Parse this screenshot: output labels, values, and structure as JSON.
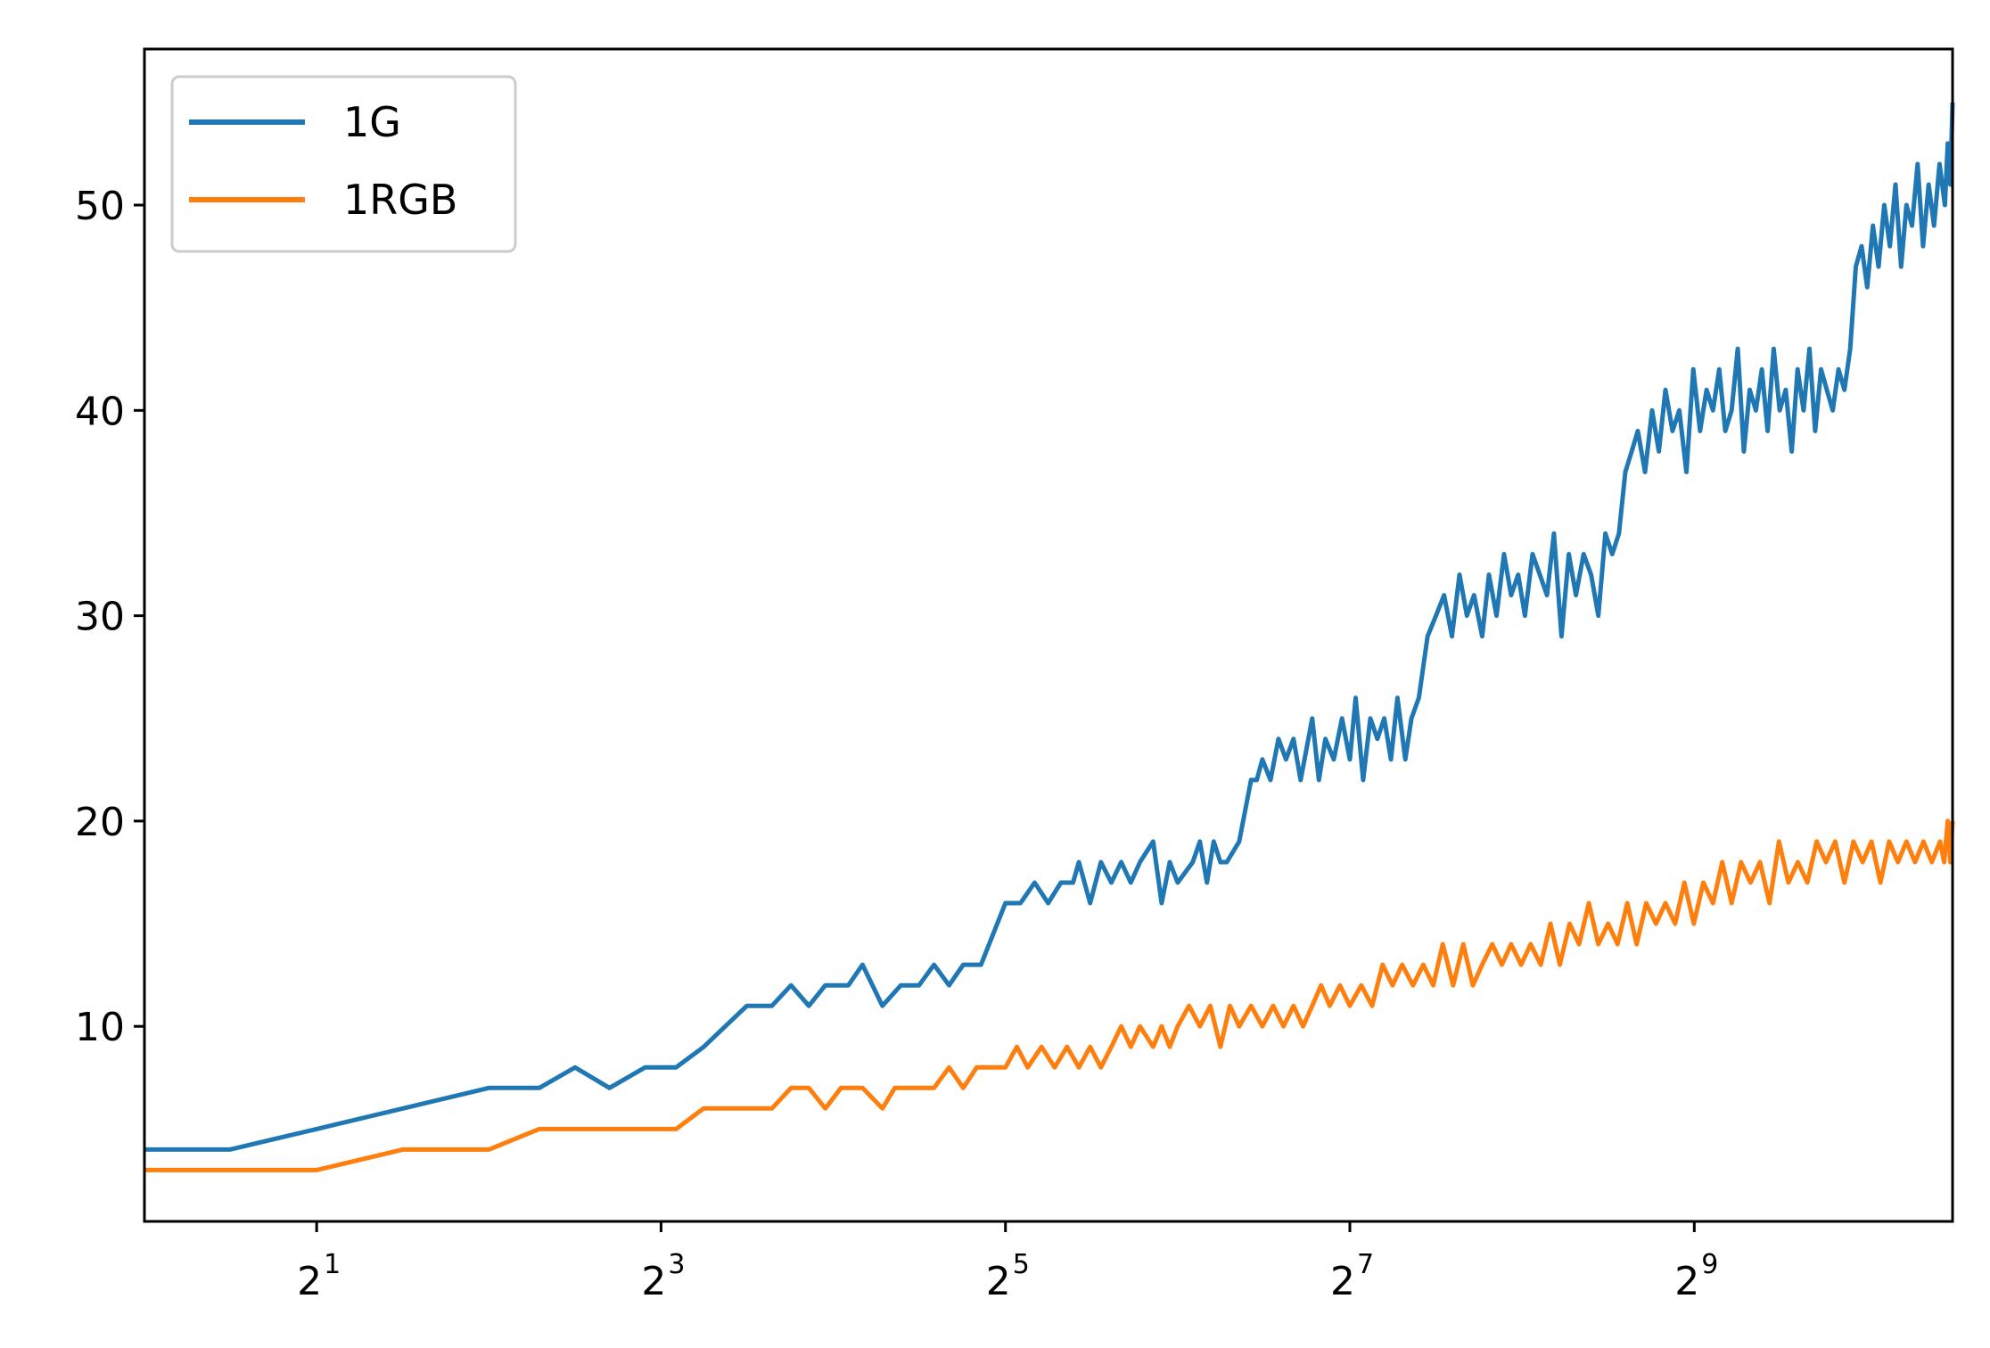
{
  "chart_data": {
    "type": "line",
    "title": "",
    "xlabel": "",
    "ylabel": "",
    "xscale": "log2",
    "xlim": [
      1,
      1448
    ],
    "ylim": [
      0.5,
      57.6
    ],
    "grid": false,
    "legend": {
      "position": "top-left"
    },
    "x_ticks": [
      {
        "value": 2,
        "base": "2",
        "exp": "1"
      },
      {
        "value": 8,
        "base": "2",
        "exp": "3"
      },
      {
        "value": 32,
        "base": "2",
        "exp": "5"
      },
      {
        "value": 128,
        "base": "2",
        "exp": "7"
      },
      {
        "value": 512,
        "base": "2",
        "exp": "9"
      }
    ],
    "y_ticks": [
      10,
      20,
      30,
      40,
      50
    ],
    "series": [
      {
        "name": "1G",
        "color": "#1f77b4",
        "points": [
          [
            1,
            4
          ],
          [
            1.41,
            4
          ],
          [
            2,
            5
          ],
          [
            2.83,
            6
          ],
          [
            4,
            7
          ],
          [
            4.9,
            7
          ],
          [
            5.66,
            8
          ],
          [
            6.5,
            7
          ],
          [
            7.5,
            8
          ],
          [
            8.5,
            8
          ],
          [
            9.5,
            9
          ],
          [
            11.3,
            11
          ],
          [
            12.5,
            11
          ],
          [
            13.5,
            12
          ],
          [
            14.5,
            11
          ],
          [
            15.5,
            12
          ],
          [
            17,
            12
          ],
          [
            18,
            13
          ],
          [
            19.5,
            11
          ],
          [
            21,
            12
          ],
          [
            22.6,
            12
          ],
          [
            24,
            13
          ],
          [
            25.5,
            12
          ],
          [
            27,
            13
          ],
          [
            29,
            13
          ],
          [
            32,
            16
          ],
          [
            34,
            16
          ],
          [
            36,
            17
          ],
          [
            38,
            16
          ],
          [
            40,
            17
          ],
          [
            42,
            17
          ],
          [
            43,
            18
          ],
          [
            45,
            16
          ],
          [
            47,
            18
          ],
          [
            49,
            17
          ],
          [
            51,
            18
          ],
          [
            53,
            17
          ],
          [
            55,
            18
          ],
          [
            58,
            19
          ],
          [
            60,
            16
          ],
          [
            62,
            18
          ],
          [
            64,
            17
          ],
          [
            68,
            18
          ],
          [
            70,
            19
          ],
          [
            72,
            17
          ],
          [
            74,
            19
          ],
          [
            76,
            18
          ],
          [
            78,
            18
          ],
          [
            82,
            19
          ],
          [
            86,
            22
          ],
          [
            88,
            22
          ],
          [
            90,
            23
          ],
          [
            93,
            22
          ],
          [
            96,
            24
          ],
          [
            99,
            23
          ],
          [
            102,
            24
          ],
          [
            105,
            22
          ],
          [
            110,
            25
          ],
          [
            113,
            22
          ],
          [
            116,
            24
          ],
          [
            120,
            23
          ],
          [
            124,
            25
          ],
          [
            128,
            23
          ],
          [
            131,
            26
          ],
          [
            135,
            22
          ],
          [
            139,
            25
          ],
          [
            143,
            24
          ],
          [
            147,
            25
          ],
          [
            151,
            23
          ],
          [
            155,
            26
          ],
          [
            160,
            23
          ],
          [
            164,
            25
          ],
          [
            169,
            26
          ],
          [
            175,
            29
          ],
          [
            181,
            30
          ],
          [
            187,
            31
          ],
          [
            193,
            29
          ],
          [
            199,
            32
          ],
          [
            205,
            30
          ],
          [
            211,
            31
          ],
          [
            218,
            29
          ],
          [
            224,
            32
          ],
          [
            231,
            30
          ],
          [
            238,
            33
          ],
          [
            245,
            31
          ],
          [
            252,
            32
          ],
          [
            259,
            30
          ],
          [
            267,
            33
          ],
          [
            275,
            32
          ],
          [
            283,
            31
          ],
          [
            291,
            34
          ],
          [
            300,
            29
          ],
          [
            309,
            33
          ],
          [
            318,
            31
          ],
          [
            328,
            33
          ],
          [
            338,
            32
          ],
          [
            348,
            30
          ],
          [
            358,
            34
          ],
          [
            368,
            33
          ],
          [
            378,
            34
          ],
          [
            388,
            37
          ],
          [
            398,
            38
          ],
          [
            408,
            39
          ],
          [
            420,
            37
          ],
          [
            432,
            40
          ],
          [
            444,
            38
          ],
          [
            456,
            41
          ],
          [
            469,
            39
          ],
          [
            482,
            40
          ],
          [
            496,
            37
          ],
          [
            510,
            42
          ],
          [
            524,
            39
          ],
          [
            538,
            41
          ],
          [
            552,
            40
          ],
          [
            566,
            42
          ],
          [
            580,
            39
          ],
          [
            595,
            40
          ],
          [
            610,
            43
          ],
          [
            625,
            38
          ],
          [
            640,
            41
          ],
          [
            656,
            40
          ],
          [
            672,
            42
          ],
          [
            688,
            39
          ],
          [
            705,
            43
          ],
          [
            722,
            40
          ],
          [
            740,
            41
          ],
          [
            758,
            38
          ],
          [
            776,
            42
          ],
          [
            795,
            40
          ],
          [
            814,
            43
          ],
          [
            833,
            39
          ],
          [
            853,
            42
          ],
          [
            873,
            41
          ],
          [
            894,
            40
          ],
          [
            915,
            42
          ],
          [
            937,
            41
          ],
          [
            959,
            43
          ],
          [
            981,
            47
          ],
          [
            1004,
            48
          ],
          [
            1027,
            46
          ],
          [
            1051,
            49
          ],
          [
            1075,
            47
          ],
          [
            1100,
            50
          ],
          [
            1125,
            48
          ],
          [
            1151,
            51
          ],
          [
            1177,
            47
          ],
          [
            1203,
            50
          ],
          [
            1230,
            49
          ],
          [
            1258,
            52
          ],
          [
            1286,
            48
          ],
          [
            1315,
            51
          ],
          [
            1344,
            49
          ],
          [
            1374,
            52
          ],
          [
            1404,
            50
          ],
          [
            1420,
            53
          ],
          [
            1435,
            51
          ],
          [
            1448,
            55
          ]
        ]
      },
      {
        "name": "1RGB",
        "color": "#ff7f0e",
        "points": [
          [
            1,
            3
          ],
          [
            2,
            3
          ],
          [
            2.83,
            4
          ],
          [
            4,
            4
          ],
          [
            4.9,
            5
          ],
          [
            8.5,
            5
          ],
          [
            9.5,
            6
          ],
          [
            12.5,
            6
          ],
          [
            13.5,
            7
          ],
          [
            14.5,
            7
          ],
          [
            15.5,
            6
          ],
          [
            16.5,
            7
          ],
          [
            18,
            7
          ],
          [
            19.5,
            6
          ],
          [
            20.5,
            7
          ],
          [
            22.6,
            7
          ],
          [
            24,
            7
          ],
          [
            25.5,
            8
          ],
          [
            27,
            7
          ],
          [
            28.5,
            8
          ],
          [
            32,
            8
          ],
          [
            33.5,
            9
          ],
          [
            35,
            8
          ],
          [
            37,
            9
          ],
          [
            39,
            8
          ],
          [
            41,
            9
          ],
          [
            43,
            8
          ],
          [
            45,
            9
          ],
          [
            47,
            8
          ],
          [
            49,
            9
          ],
          [
            51,
            10
          ],
          [
            53,
            9
          ],
          [
            55,
            10
          ],
          [
            58,
            9
          ],
          [
            60,
            10
          ],
          [
            62,
            9
          ],
          [
            64,
            10
          ],
          [
            67,
            11
          ],
          [
            70,
            10
          ],
          [
            73,
            11
          ],
          [
            76,
            9
          ],
          [
            79,
            11
          ],
          [
            82,
            10
          ],
          [
            86,
            11
          ],
          [
            90,
            10
          ],
          [
            94,
            11
          ],
          [
            98,
            10
          ],
          [
            102,
            11
          ],
          [
            106,
            10
          ],
          [
            110,
            11
          ],
          [
            114,
            12
          ],
          [
            118,
            11
          ],
          [
            123,
            12
          ],
          [
            128,
            11
          ],
          [
            134,
            12
          ],
          [
            140,
            11
          ],
          [
            146,
            13
          ],
          [
            152,
            12
          ],
          [
            158,
            13
          ],
          [
            165,
            12
          ],
          [
            172,
            13
          ],
          [
            179,
            12
          ],
          [
            186,
            14
          ],
          [
            194,
            12
          ],
          [
            202,
            14
          ],
          [
            210,
            12
          ],
          [
            218,
            13
          ],
          [
            227,
            14
          ],
          [
            236,
            13
          ],
          [
            245,
            14
          ],
          [
            255,
            13
          ],
          [
            265,
            14
          ],
          [
            276,
            13
          ],
          [
            287,
            15
          ],
          [
            298,
            13
          ],
          [
            310,
            15
          ],
          [
            322,
            14
          ],
          [
            335,
            16
          ],
          [
            348,
            14
          ],
          [
            362,
            15
          ],
          [
            376,
            14
          ],
          [
            391,
            16
          ],
          [
            406,
            14
          ],
          [
            422,
            16
          ],
          [
            439,
            15
          ],
          [
            456,
            16
          ],
          [
            474,
            15
          ],
          [
            492,
            17
          ],
          [
            511,
            15
          ],
          [
            531,
            17
          ],
          [
            552,
            16
          ],
          [
            573,
            18
          ],
          [
            595,
            16
          ],
          [
            618,
            18
          ],
          [
            642,
            17
          ],
          [
            667,
            18
          ],
          [
            693,
            16
          ],
          [
            720,
            19
          ],
          [
            748,
            17
          ],
          [
            777,
            18
          ],
          [
            807,
            17
          ],
          [
            838,
            19
          ],
          [
            870,
            18
          ],
          [
            903,
            19
          ],
          [
            937,
            17
          ],
          [
            972,
            19
          ],
          [
            1008,
            18
          ],
          [
            1045,
            19
          ],
          [
            1083,
            17
          ],
          [
            1122,
            19
          ],
          [
            1162,
            18
          ],
          [
            1203,
            19
          ],
          [
            1245,
            18
          ],
          [
            1288,
            19
          ],
          [
            1332,
            18
          ],
          [
            1377,
            19
          ],
          [
            1400,
            18
          ],
          [
            1420,
            20
          ],
          [
            1435,
            18
          ],
          [
            1448,
            20
          ]
        ]
      }
    ]
  }
}
